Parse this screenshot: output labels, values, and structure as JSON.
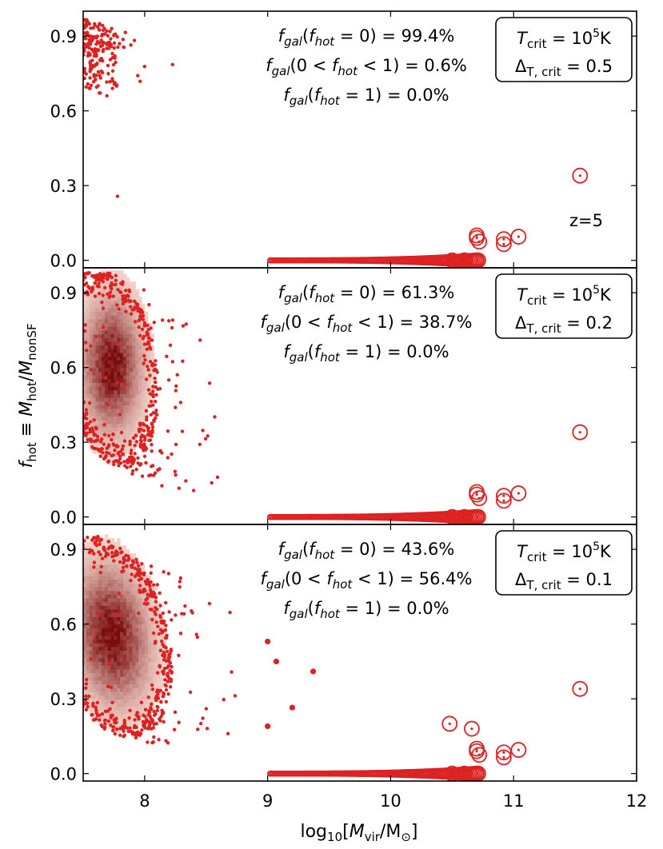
{
  "chart_data": {
    "type": "scatter",
    "figure_type": "three stacked scatter panels with 2D density (heatmap) background and circled massive halos",
    "xlabel": "log10[M_vir/M⊙]",
    "ylabel": "f_hot ≡ M_hot/M_nonSF",
    "xlim": [
      7.5,
      12
    ],
    "ylim": [
      -0.03,
      1.0
    ],
    "xticks": [
      "8",
      "9",
      "10",
      "11",
      "12"
    ],
    "yticks": [
      "0.0",
      "0.3",
      "0.6",
      "0.9"
    ],
    "redshift_label": "z=5",
    "marker_color": "#dd2222",
    "density_color_dark": "#7a0c0c",
    "density_color_light": "#fbe1d8",
    "circled_halos": [
      {
        "x": 11.54,
        "y": 0.34
      },
      {
        "x": 11.04,
        "y": 0.095
      },
      {
        "x": 10.92,
        "y": 0.085
      },
      {
        "x": 10.92,
        "y": 0.065
      },
      {
        "x": 10.7,
        "y": 0.1
      },
      {
        "x": 10.7,
        "y": 0.09
      },
      {
        "x": 10.72,
        "y": 0.075
      },
      {
        "x": 10.7,
        "y": 0.0
      },
      {
        "x": 10.6,
        "y": 0.0
      },
      {
        "x": 10.5,
        "y": 0.0
      }
    ],
    "panels": [
      {
        "id": "top",
        "delta_t_crit": "0.5",
        "fractions": {
          "f_hot_0": "99.4%",
          "f_hot_between": "0.6%",
          "f_hot_1": "0.0%"
        },
        "has_density": false,
        "extra_circled": []
      },
      {
        "id": "middle",
        "delta_t_crit": "0.2",
        "fractions": {
          "f_hot_0": "61.3%",
          "f_hot_between": "38.7%",
          "f_hot_1": "0.0%"
        },
        "has_density": true,
        "extra_circled": []
      },
      {
        "id": "bottom",
        "delta_t_crit": "0.1",
        "fractions": {
          "f_hot_0": "43.6%",
          "f_hot_between": "56.4%",
          "f_hot_1": "0.0%"
        },
        "has_density": true,
        "extra_circled": [
          {
            "x": 10.48,
            "y": 0.2
          },
          {
            "x": 10.66,
            "y": 0.18
          }
        ]
      }
    ]
  }
}
